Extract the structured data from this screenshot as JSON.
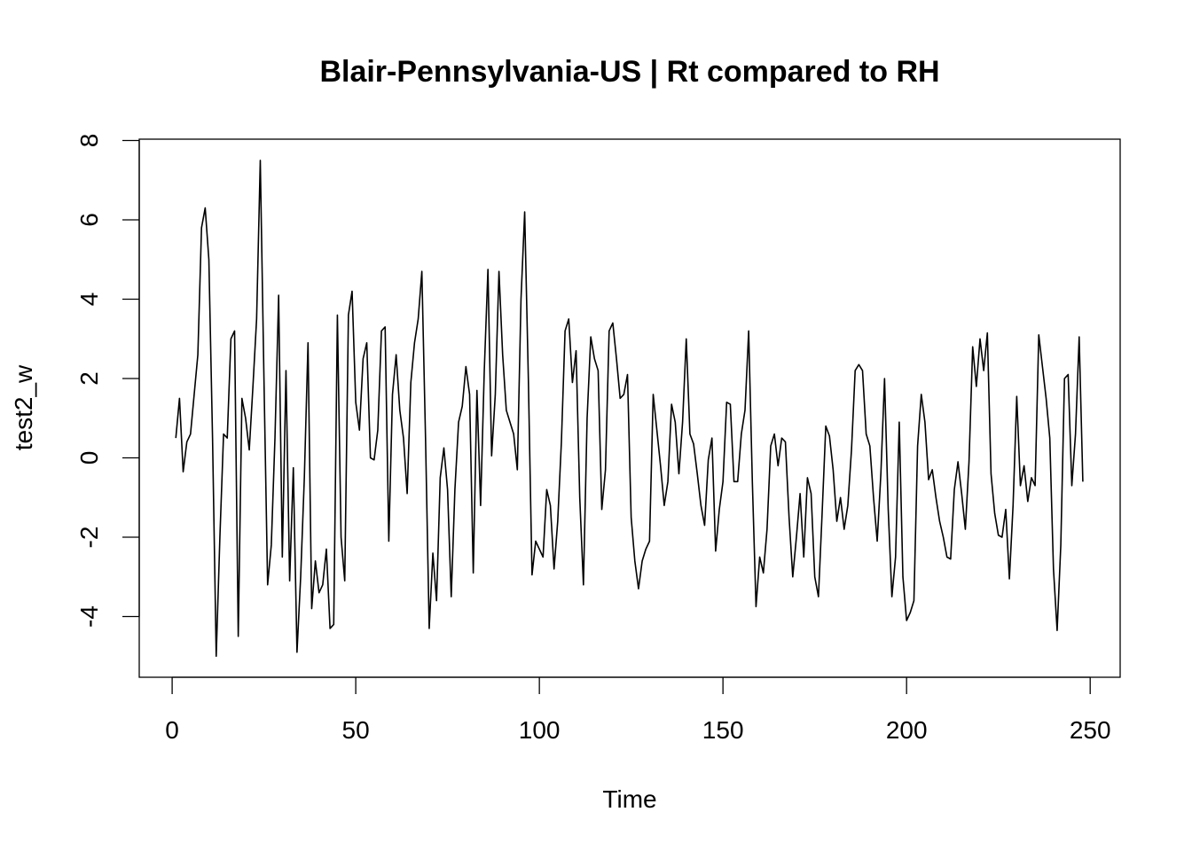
{
  "chart_data": {
    "type": "line",
    "title": "Blair-Pennsylvania-US | Rt compared to RH",
    "xlabel": "Time",
    "ylabel": "test2_w",
    "xlim": [
      1,
      248
    ],
    "ylim": [
      -5,
      8
    ],
    "x_ticks": [
      0,
      50,
      100,
      150,
      200,
      250
    ],
    "y_ticks": [
      -4,
      -2,
      0,
      2,
      4,
      6,
      8
    ],
    "x_tick_labels": [
      "0",
      "50",
      "100",
      "150",
      "200",
      "250"
    ],
    "y_tick_labels": [
      "-4",
      "-2",
      "0",
      "2",
      "4",
      "6",
      "8"
    ],
    "grid": false,
    "legend": "none",
    "series": [
      {
        "x_start": 1,
        "x_step": 1,
        "values": [
          0.5,
          1.5,
          -0.35,
          0.4,
          0.6,
          1.6,
          2.6,
          5.8,
          6.3,
          5.0,
          0.5,
          -5.0,
          -2.0,
          0.6,
          0.5,
          3.0,
          3.2,
          -4.5,
          1.5,
          1.0,
          0.2,
          1.8,
          3.5,
          7.5,
          2.0,
          -3.2,
          -2.2,
          0.5,
          4.1,
          -2.5,
          2.2,
          -3.1,
          -0.25,
          -4.9,
          -3.0,
          -0.5,
          2.9,
          -3.8,
          -2.6,
          -3.4,
          -3.2,
          -2.3,
          -4.3,
          -4.2,
          3.6,
          -2.0,
          -3.1,
          3.6,
          4.2,
          1.4,
          0.7,
          2.5,
          2.9,
          0.0,
          -0.05,
          0.7,
          3.2,
          3.3,
          -2.1,
          1.6,
          2.6,
          1.2,
          0.5,
          -0.9,
          1.9,
          2.9,
          3.5,
          4.7,
          0.5,
          -4.3,
          -2.4,
          -3.6,
          -0.5,
          0.25,
          -0.8,
          -3.5,
          -0.8,
          0.9,
          1.3,
          2.3,
          1.6,
          -2.9,
          1.7,
          -1.2,
          2.2,
          4.75,
          0.05,
          1.6,
          4.7,
          2.6,
          1.2,
          0.9,
          0.6,
          -0.3,
          4.0,
          6.2,
          2.0,
          -2.95,
          -2.1,
          -2.3,
          -2.5,
          -0.8,
          -1.2,
          -2.8,
          -1.6,
          0.4,
          3.2,
          3.5,
          1.9,
          2.7,
          -1.0,
          -3.2,
          1.0,
          3.05,
          2.5,
          2.2,
          -1.3,
          -0.3,
          3.2,
          3.4,
          2.5,
          1.5,
          1.6,
          2.1,
          -1.5,
          -2.6,
          -3.3,
          -2.6,
          -2.3,
          -2.1,
          1.6,
          0.7,
          -0.2,
          -1.2,
          -0.6,
          1.35,
          0.9,
          -0.4,
          0.9,
          3.0,
          0.6,
          0.35,
          -0.4,
          -1.2,
          -1.7,
          -0.05,
          0.5,
          -2.35,
          -1.3,
          -0.6,
          1.4,
          1.35,
          -0.6,
          -0.6,
          0.6,
          1.2,
          3.2,
          -0.6,
          -3.75,
          -2.5,
          -2.9,
          -1.8,
          0.3,
          0.6,
          -0.2,
          0.5,
          0.4,
          -1.5,
          -3.0,
          -2.0,
          -0.9,
          -2.5,
          -0.5,
          -0.9,
          -3.0,
          -3.5,
          -1.4,
          0.8,
          0.55,
          -0.3,
          -1.6,
          -1.0,
          -1.8,
          -1.2,
          0.2,
          2.2,
          2.35,
          2.2,
          0.6,
          0.3,
          -1.0,
          -2.1,
          -0.4,
          2.0,
          -1.3,
          -3.5,
          -2.5,
          0.9,
          -3.0,
          -4.1,
          -3.9,
          -3.6,
          0.3,
          1.6,
          0.9,
          -0.55,
          -0.3,
          -1.0,
          -1.6,
          -2.0,
          -2.5,
          -2.55,
          -0.8,
          -0.1,
          -0.9,
          -1.8,
          -0.1,
          2.8,
          1.8,
          3.0,
          2.2,
          3.15,
          -0.4,
          -1.4,
          -1.95,
          -2.0,
          -1.3,
          -3.05,
          -1.2,
          1.55,
          -0.7,
          -0.2,
          -1.1,
          -0.5,
          -0.7,
          3.1,
          2.3,
          1.5,
          0.5,
          -2.8,
          -4.35,
          -2.2,
          2.0,
          2.1,
          -0.7,
          0.6,
          3.05,
          -0.6
        ]
      }
    ]
  }
}
